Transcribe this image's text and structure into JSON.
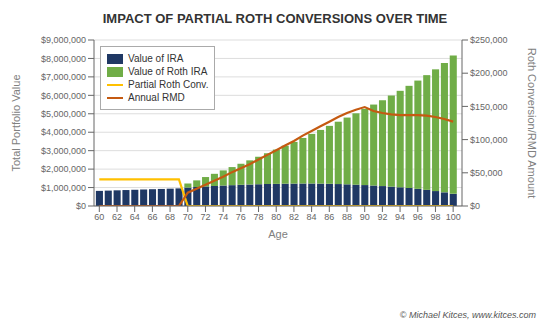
{
  "chart_data": {
    "type": "bar",
    "title": "IMPACT OF PARTIAL ROTH CONVERSIONS OVER TIME",
    "xlabel": "Age",
    "ylabel": "Total Portfolio Value",
    "y2label": "Roth Conversion/RMD Amount",
    "annotations": [
      "© Michael Kitces, www.kitces.com"
    ],
    "x": [
      60,
      61,
      62,
      63,
      64,
      65,
      66,
      67,
      68,
      69,
      70,
      71,
      72,
      73,
      74,
      75,
      76,
      77,
      78,
      79,
      80,
      81,
      82,
      83,
      84,
      85,
      86,
      87,
      88,
      89,
      90,
      91,
      92,
      93,
      94,
      95,
      96,
      97,
      98,
      99,
      100
    ],
    "stacked": true,
    "grid": true,
    "legend": "upper left",
    "series": [
      {
        "name": "Value of IRA",
        "type": "bar",
        "color": "#1f3864",
        "values": [
          820000,
          835000,
          850000,
          865000,
          880000,
          895000,
          910000,
          925000,
          940000,
          955000,
          1000000,
          1030000,
          1060000,
          1085000,
          1110000,
          1130000,
          1150000,
          1165000,
          1180000,
          1190000,
          1200000,
          1210000,
          1215000,
          1220000,
          1220000,
          1215000,
          1205000,
          1190000,
          1175000,
          1155000,
          1135000,
          1110000,
          1080000,
          1050000,
          1015000,
          975000,
          930000,
          875000,
          810000,
          740000,
          660000
        ]
      },
      {
        "name": "Value of Roth IRA",
        "type": "bar",
        "color": "#70ad47",
        "values": [
          0,
          0,
          0,
          0,
          0,
          0,
          0,
          0,
          0,
          0,
          220000,
          360000,
          510000,
          660000,
          820000,
          980000,
          1140000,
          1310000,
          1490000,
          1670000,
          1860000,
          2060000,
          2260000,
          2470000,
          2690000,
          2910000,
          3140000,
          3380000,
          3620000,
          3870000,
          4130000,
          4390000,
          4660000,
          4940000,
          5230000,
          5540000,
          5870000,
          6220000,
          6600000,
          7010000,
          7500000
        ]
      },
      {
        "name": "Partial Roth Conv.",
        "type": "line",
        "axis": "y2",
        "color": "#ffc000",
        "values": [
          40000,
          40000,
          40000,
          40000,
          40000,
          40000,
          40000,
          40000,
          40000,
          40000,
          0,
          0,
          0,
          0,
          0,
          0,
          0,
          0,
          0,
          0,
          0,
          0,
          0,
          0,
          0,
          0,
          0,
          0,
          0,
          0,
          0,
          0,
          0,
          0,
          0,
          0,
          0,
          0,
          0,
          0,
          0
        ]
      },
      {
        "name": "Annual RMD",
        "type": "line",
        "axis": "y2",
        "color": "#c55a11",
        "values": [
          0,
          0,
          0,
          0,
          0,
          0,
          0,
          0,
          0,
          0,
          20000,
          26000,
          32000,
          38000,
          44000,
          51000,
          57000,
          63000,
          70000,
          77000,
          84000,
          91000,
          98000,
          106000,
          113000,
          120000,
          127000,
          134000,
          140000,
          145000,
          149000,
          143000,
          140000,
          138000,
          137000,
          137000,
          137000,
          136000,
          134000,
          131000,
          127000
        ]
      }
    ],
    "xlim": [
      59.4,
      101
    ],
    "xticks": [
      60,
      62,
      64,
      66,
      68,
      70,
      72,
      74,
      76,
      78,
      80,
      82,
      84,
      86,
      88,
      90,
      92,
      94,
      96,
      98,
      100
    ],
    "ylim": [
      0,
      9000000
    ],
    "yticks": [
      {
        "value": 0,
        "label": "$0"
      },
      {
        "value": 1000000,
        "label": "$1,000,000"
      },
      {
        "value": 2000000,
        "label": "$2,000,000"
      },
      {
        "value": 3000000,
        "label": "$3,000,000"
      },
      {
        "value": 4000000,
        "label": "$4,000,000"
      },
      {
        "value": 5000000,
        "label": "$5,000,000"
      },
      {
        "value": 6000000,
        "label": "$6,000,000"
      },
      {
        "value": 7000000,
        "label": "$7,000,000"
      },
      {
        "value": 8000000,
        "label": "$8,000,000"
      },
      {
        "value": 9000000,
        "label": "$9,000,000"
      }
    ],
    "y2lim": [
      0,
      250000
    ],
    "y2ticks": [
      {
        "value": 0,
        "label": "$0"
      },
      {
        "value": 50000,
        "label": "$50,000"
      },
      {
        "value": 100000,
        "label": "$100,000"
      },
      {
        "value": 150000,
        "label": "$150,000"
      },
      {
        "value": 200000,
        "label": "$200,000"
      },
      {
        "value": 250000,
        "label": "$250,000"
      }
    ]
  }
}
